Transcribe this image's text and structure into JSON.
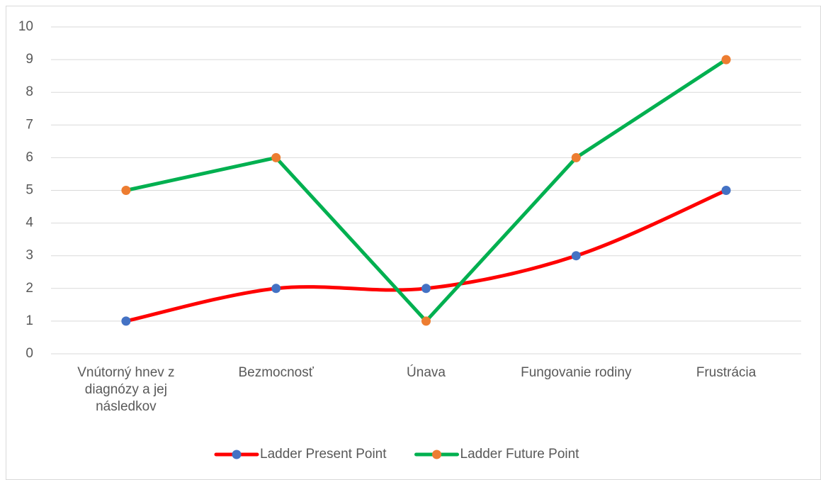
{
  "chart_data": {
    "type": "line",
    "categories": [
      "Vnútorný hnev z diagnózy a jej následkov",
      "Bezmocnosť",
      "Únava",
      "Fungovanie rodiny",
      "Frustrácia"
    ],
    "series": [
      {
        "name": "Ladder Present Point",
        "color": "#ff0000",
        "marker_color": "#4472c4",
        "smooth": true,
        "values": [
          1,
          2,
          2,
          3,
          5
        ]
      },
      {
        "name": "Ladder Future Point",
        "color": "#00b050",
        "marker_color": "#ed7d31",
        "smooth": false,
        "values": [
          5,
          6,
          1,
          6,
          9
        ]
      }
    ],
    "ylim": [
      0,
      10
    ],
    "yticks": [
      0,
      1,
      2,
      3,
      4,
      5,
      6,
      7,
      8,
      9,
      10
    ],
    "grid": true,
    "legend": "bottom"
  }
}
